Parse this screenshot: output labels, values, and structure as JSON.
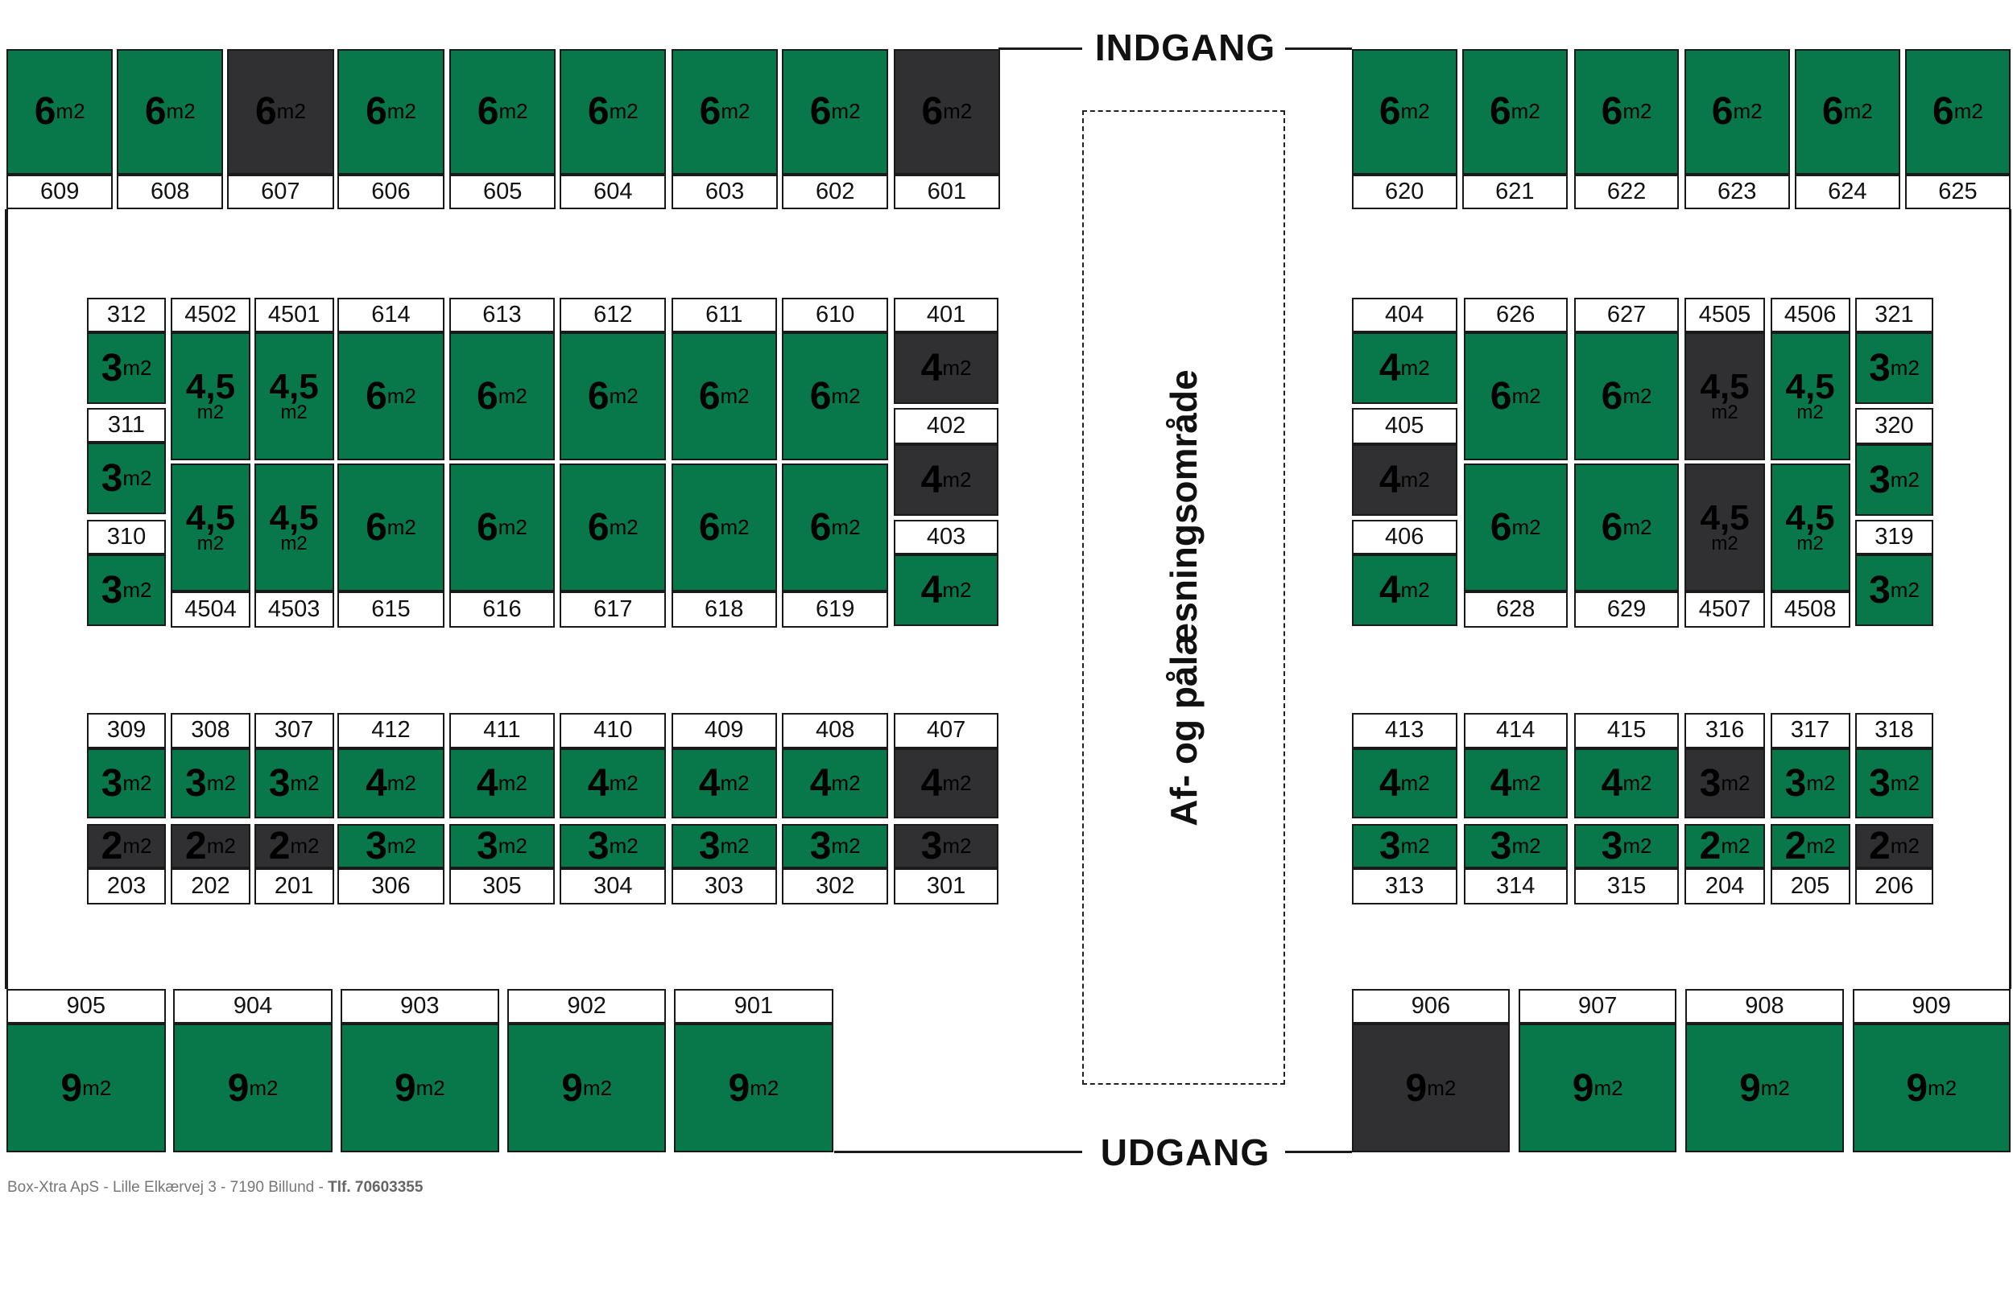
{
  "signs": {
    "entrance": "INDGANG",
    "exit": "UDGANG",
    "loading_zone": "Af- og pålæsningsområde"
  },
  "unit_suffix": "m2",
  "colors": {
    "available": "#08784a",
    "occupied": "#303033",
    "label_bg": "#ffffff"
  },
  "units": [
    {
      "id": "609",
      "size": "6",
      "status": "available"
    },
    {
      "id": "608",
      "size": "6",
      "status": "available"
    },
    {
      "id": "607",
      "size": "6",
      "status": "occupied"
    },
    {
      "id": "606",
      "size": "6",
      "status": "available"
    },
    {
      "id": "605",
      "size": "6",
      "status": "available"
    },
    {
      "id": "604",
      "size": "6",
      "status": "available"
    },
    {
      "id": "603",
      "size": "6",
      "status": "available"
    },
    {
      "id": "602",
      "size": "6",
      "status": "available"
    },
    {
      "id": "601",
      "size": "6",
      "status": "occupied"
    },
    {
      "id": "620",
      "size": "6",
      "status": "available"
    },
    {
      "id": "621",
      "size": "6",
      "status": "available"
    },
    {
      "id": "622",
      "size": "6",
      "status": "available"
    },
    {
      "id": "623",
      "size": "6",
      "status": "available"
    },
    {
      "id": "624",
      "size": "6",
      "status": "available"
    },
    {
      "id": "625",
      "size": "6",
      "status": "available"
    },
    {
      "id": "312",
      "size": "3",
      "status": "available"
    },
    {
      "id": "311",
      "size": "3",
      "status": "available"
    },
    {
      "id": "310",
      "size": "3",
      "status": "available"
    },
    {
      "id": "4502",
      "size": "4,5",
      "status": "available"
    },
    {
      "id": "4504",
      "size": "4,5",
      "status": "available"
    },
    {
      "id": "4501",
      "size": "4,5",
      "status": "available"
    },
    {
      "id": "4503",
      "size": "4,5",
      "status": "available"
    },
    {
      "id": "614",
      "size": "6",
      "status": "available"
    },
    {
      "id": "613",
      "size": "6",
      "status": "available"
    },
    {
      "id": "612",
      "size": "6",
      "status": "available"
    },
    {
      "id": "611",
      "size": "6",
      "status": "available"
    },
    {
      "id": "610",
      "size": "6",
      "status": "available"
    },
    {
      "id": "615",
      "size": "6",
      "status": "available"
    },
    {
      "id": "616",
      "size": "6",
      "status": "available"
    },
    {
      "id": "617",
      "size": "6",
      "status": "available"
    },
    {
      "id": "618",
      "size": "6",
      "status": "available"
    },
    {
      "id": "619",
      "size": "6",
      "status": "available"
    },
    {
      "id": "401",
      "size": "4",
      "status": "occupied"
    },
    {
      "id": "402",
      "size": "4",
      "status": "occupied"
    },
    {
      "id": "403",
      "size": "4",
      "status": "available"
    },
    {
      "id": "404",
      "size": "4",
      "status": "available"
    },
    {
      "id": "405",
      "size": "4",
      "status": "occupied"
    },
    {
      "id": "406",
      "size": "4",
      "status": "available"
    },
    {
      "id": "626",
      "size": "6",
      "status": "available"
    },
    {
      "id": "628",
      "size": "6",
      "status": "available"
    },
    {
      "id": "627",
      "size": "6",
      "status": "available"
    },
    {
      "id": "629",
      "size": "6",
      "status": "available"
    },
    {
      "id": "4505",
      "size": "4,5",
      "status": "occupied"
    },
    {
      "id": "4507",
      "size": "4,5",
      "status": "occupied"
    },
    {
      "id": "4506",
      "size": "4,5",
      "status": "available"
    },
    {
      "id": "4508",
      "size": "4,5",
      "status": "available"
    },
    {
      "id": "321",
      "size": "3",
      "status": "available"
    },
    {
      "id": "320",
      "size": "3",
      "status": "available"
    },
    {
      "id": "319",
      "size": "3",
      "status": "available"
    },
    {
      "id": "309",
      "size": "3",
      "status": "available"
    },
    {
      "id": "308",
      "size": "3",
      "status": "available"
    },
    {
      "id": "307",
      "size": "3",
      "status": "available"
    },
    {
      "id": "412",
      "size": "4",
      "status": "available"
    },
    {
      "id": "411",
      "size": "4",
      "status": "available"
    },
    {
      "id": "410",
      "size": "4",
      "status": "available"
    },
    {
      "id": "409",
      "size": "4",
      "status": "available"
    },
    {
      "id": "408",
      "size": "4",
      "status": "available"
    },
    {
      "id": "407",
      "size": "4",
      "status": "occupied"
    },
    {
      "id": "203",
      "size": "2",
      "status": "occupied"
    },
    {
      "id": "202",
      "size": "2",
      "status": "occupied"
    },
    {
      "id": "201",
      "size": "2",
      "status": "occupied"
    },
    {
      "id": "306",
      "size": "3",
      "status": "available"
    },
    {
      "id": "305",
      "size": "3",
      "status": "available"
    },
    {
      "id": "304",
      "size": "3",
      "status": "available"
    },
    {
      "id": "303",
      "size": "3",
      "status": "available"
    },
    {
      "id": "302",
      "size": "3",
      "status": "available"
    },
    {
      "id": "301",
      "size": "3",
      "status": "occupied"
    },
    {
      "id": "413",
      "size": "4",
      "status": "available"
    },
    {
      "id": "414",
      "size": "4",
      "status": "available"
    },
    {
      "id": "415",
      "size": "4",
      "status": "available"
    },
    {
      "id": "316",
      "size": "3",
      "status": "occupied"
    },
    {
      "id": "317",
      "size": "3",
      "status": "available"
    },
    {
      "id": "318",
      "size": "3",
      "status": "available"
    },
    {
      "id": "313",
      "size": "3",
      "status": "available"
    },
    {
      "id": "314",
      "size": "3",
      "status": "available"
    },
    {
      "id": "315",
      "size": "3",
      "status": "available"
    },
    {
      "id": "204",
      "size": "2",
      "status": "available"
    },
    {
      "id": "205",
      "size": "2",
      "status": "available"
    },
    {
      "id": "206",
      "size": "2",
      "status": "occupied"
    },
    {
      "id": "905",
      "size": "9",
      "status": "available"
    },
    {
      "id": "904",
      "size": "9",
      "status": "available"
    },
    {
      "id": "903",
      "size": "9",
      "status": "available"
    },
    {
      "id": "902",
      "size": "9",
      "status": "available"
    },
    {
      "id": "901",
      "size": "9",
      "status": "available"
    },
    {
      "id": "906",
      "size": "9",
      "status": "occupied"
    },
    {
      "id": "907",
      "size": "9",
      "status": "available"
    },
    {
      "id": "908",
      "size": "9",
      "status": "available"
    },
    {
      "id": "909",
      "size": "9",
      "status": "available"
    }
  ],
  "footer": {
    "address": "Box-Xtra ApS - Lille Elkærvej 3 - 7190 Billund - ",
    "phone": "Tlf. 70603355"
  }
}
